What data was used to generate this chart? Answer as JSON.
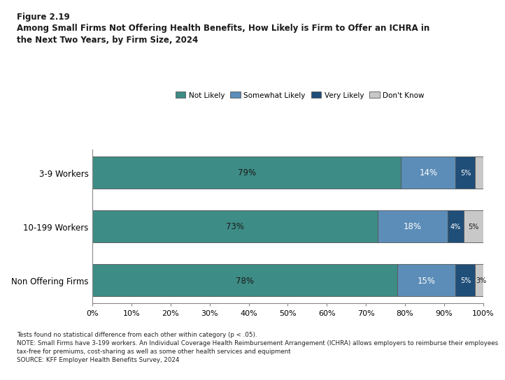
{
  "title_line1": "Figure 2.19",
  "title_line2": "Among Small Firms Not Offering Health Benefits, How Likely is Firm to Offer an ICHRA in",
  "title_line3": "the Next Two Years, by Firm Size, 2024",
  "categories": [
    "3-9 Workers",
    "10-199 Workers",
    "Non Offering Firms"
  ],
  "series": {
    "Not Likely": [
      79,
      73,
      78
    ],
    "Somewhat Likely": [
      14,
      18,
      15
    ],
    "Very Likely": [
      5,
      4,
      5
    ],
    "Don't Know": [
      2,
      5,
      3
    ]
  },
  "colors": {
    "Not Likely": "#3d8c85",
    "Somewhat Likely": "#5b8db8",
    "Very Likely": "#1f4e79",
    "Don't Know": "#c8c8c8"
  },
  "labels": {
    "Not Likely": [
      "79%",
      "73%",
      "78%"
    ],
    "Somewhat Likely": [
      "14%",
      "18%",
      "15%"
    ],
    "Very Likely": [
      "5%",
      "4%",
      "5%"
    ],
    "Don't Know": [
      "",
      "5%",
      "3%"
    ]
  },
  "label_colors": {
    "Not Likely": "#1a1a1a",
    "Somewhat Likely": "#ffffff",
    "Very Likely": "#ffffff",
    "Don't Know": "#1a1a1a"
  },
  "xlim": [
    0,
    100
  ],
  "xticks": [
    0,
    10,
    20,
    30,
    40,
    50,
    60,
    70,
    80,
    90,
    100
  ],
  "xtick_labels": [
    "0%",
    "10%",
    "20%",
    "30%",
    "40%",
    "50%",
    "60%",
    "70%",
    "80%",
    "90%",
    "100%"
  ],
  "note1": "Tests found no statistical difference from each other within category (p < .05).",
  "note2": "NOTE: Small Firms have 3-199 workers. An Individual Coverage Health Reimbursement Arrangement (ICHRA) allows employers to reimburse their employees",
  "note3": "tax-free for premiums, cost-sharing as well as some other health services and equipment",
  "note4": "SOURCE: KFF Employer Health Benefits Survey, 2024",
  "bar_height": 0.6,
  "edgecolor": "#555555",
  "background_color": "#ffffff"
}
